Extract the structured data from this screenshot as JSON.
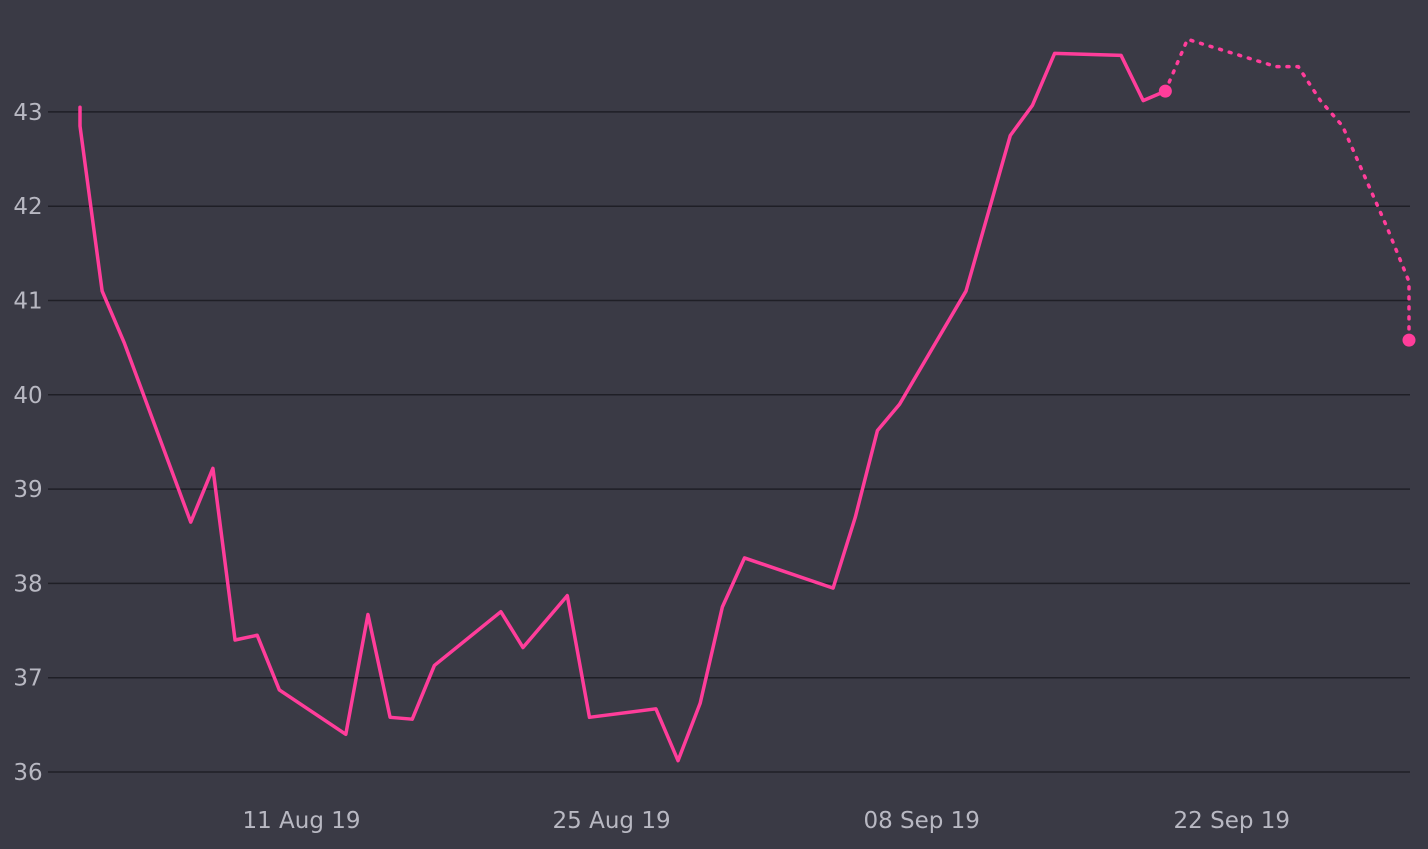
{
  "chart_data": {
    "type": "line",
    "title": "",
    "xlabel": "",
    "ylabel": "",
    "ylim": [
      36,
      43.7
    ],
    "xlim": [
      "2019-08-01",
      "2019-09-30"
    ],
    "grid": true,
    "y_ticks": [
      "36",
      "37",
      "38",
      "39",
      "40",
      "41",
      "42",
      "43"
    ],
    "x_ticks": [
      {
        "date": "2019-08-11",
        "label": "11 Aug 19"
      },
      {
        "date": "2019-08-25",
        "label": "25 Aug 19"
      },
      {
        "date": "2019-09-08",
        "label": "08 Sep 19"
      },
      {
        "date": "2019-09-22",
        "label": "22 Sep 19"
      }
    ],
    "series": [
      {
        "style": "solid",
        "color": "#ff3d9a",
        "points": [
          {
            "x": "2019-08-01",
            "y": 43.05
          },
          {
            "x": "2019-08-01",
            "y": 42.85
          },
          {
            "x": "2019-08-02",
            "y": 41.1
          },
          {
            "x": "2019-08-03",
            "y": 40.55
          },
          {
            "x": "2019-08-06",
            "y": 38.65
          },
          {
            "x": "2019-08-07",
            "y": 39.22
          },
          {
            "x": "2019-08-08",
            "y": 37.4
          },
          {
            "x": "2019-08-09",
            "y": 37.45
          },
          {
            "x": "2019-08-10",
            "y": 36.87
          },
          {
            "x": "2019-08-13",
            "y": 36.4
          },
          {
            "x": "2019-08-14",
            "y": 37.67
          },
          {
            "x": "2019-08-15",
            "y": 36.58
          },
          {
            "x": "2019-08-16",
            "y": 36.56
          },
          {
            "x": "2019-08-17",
            "y": 37.13
          },
          {
            "x": "2019-08-20",
            "y": 37.7
          },
          {
            "x": "2019-08-21",
            "y": 37.32
          },
          {
            "x": "2019-08-23",
            "y": 37.87
          },
          {
            "x": "2019-08-24",
            "y": 36.58
          },
          {
            "x": "2019-08-27",
            "y": 36.67
          },
          {
            "x": "2019-08-28",
            "y": 36.12
          },
          {
            "x": "2019-08-29",
            "y": 36.73
          },
          {
            "x": "2019-08-30",
            "y": 37.75
          },
          {
            "x": "2019-08-31",
            "y": 38.27
          },
          {
            "x": "2019-09-04",
            "y": 37.95
          },
          {
            "x": "2019-09-05",
            "y": 38.7
          },
          {
            "x": "2019-09-06",
            "y": 39.62
          },
          {
            "x": "2019-09-07",
            "y": 39.9
          },
          {
            "x": "2019-09-10",
            "y": 41.1
          },
          {
            "x": "2019-09-12",
            "y": 42.75
          },
          {
            "x": "2019-09-13",
            "y": 43.07
          },
          {
            "x": "2019-09-14",
            "y": 43.62
          },
          {
            "x": "2019-09-17",
            "y": 43.6
          },
          {
            "x": "2019-09-18",
            "y": 43.12
          },
          {
            "x": "2019-09-19",
            "y": 43.22
          }
        ]
      },
      {
        "style": "dotted",
        "color": "#ff3d9a",
        "points": [
          {
            "x": "2019-09-19",
            "y": 43.22
          },
          {
            "x": "2019-09-20",
            "y": 43.77
          },
          {
            "x": "2019-09-24",
            "y": 43.48
          },
          {
            "x": "2019-09-25",
            "y": 43.48
          },
          {
            "x": "2019-09-26",
            "y": 43.12
          },
          {
            "x": "2019-09-27",
            "y": 42.85
          },
          {
            "x": "2019-09-29",
            "y": 41.78
          },
          {
            "x": "2019-09-30",
            "y": 41.2
          },
          {
            "x": "2019-09-30",
            "y": 40.58
          }
        ]
      }
    ],
    "markers": [
      {
        "x": "2019-09-19",
        "y": 43.22
      },
      {
        "x": "2019-09-30",
        "y": 40.58
      }
    ]
  }
}
